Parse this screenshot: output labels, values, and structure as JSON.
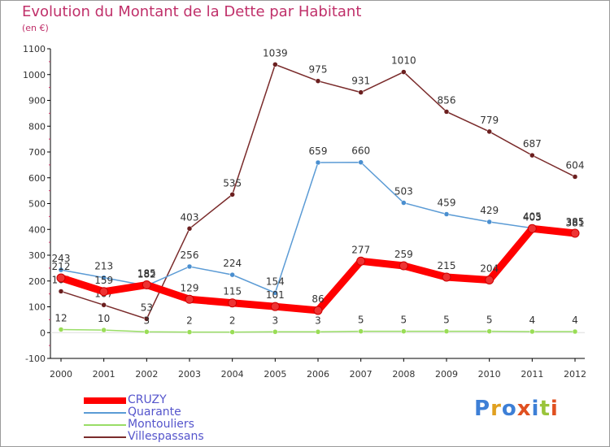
{
  "title": "Evolution du Montant de la Dette par Habitant",
  "subtitle": "(en €)",
  "logo": {
    "text": "Proxiti"
  },
  "chart_data": {
    "type": "line",
    "title": "Evolution du Montant de la Dette par Habitant",
    "subtitle": "(en €)",
    "xlabel": "",
    "ylabel": "",
    "x": [
      "2000",
      "2001",
      "2002",
      "2003",
      "2004",
      "2005",
      "2006",
      "2007",
      "2008",
      "2009",
      "2010",
      "2011",
      "2012"
    ],
    "ylim": [
      -100,
      1100
    ],
    "yticks": [
      -100,
      0,
      100,
      200,
      300,
      400,
      500,
      600,
      700,
      800,
      900,
      1000,
      1100
    ],
    "grid": false,
    "legend": "bottom-left",
    "series": [
      {
        "name": "CRUZY",
        "color": "#ff0000",
        "values": [
          212,
          159,
          185,
          129,
          115,
          101,
          86,
          277,
          259,
          215,
          204,
          403,
          385
        ]
      },
      {
        "name": "Quarante",
        "color": "#5b9bd5",
        "values": [
          243,
          213,
          182,
          256,
          224,
          154,
          659,
          660,
          503,
          459,
          429,
          405,
          381
        ]
      },
      {
        "name": "Montouliers",
        "color": "#99dd66",
        "values": [
          12,
          10,
          3,
          2,
          2,
          3,
          3,
          5,
          5,
          5,
          5,
          4,
          4
        ]
      },
      {
        "name": "Villespassans",
        "color": "#7a2b2b",
        "values": [
          160,
          107,
          53,
          403,
          535,
          1039,
          975,
          931,
          1010,
          856,
          779,
          687,
          604
        ]
      }
    ]
  }
}
